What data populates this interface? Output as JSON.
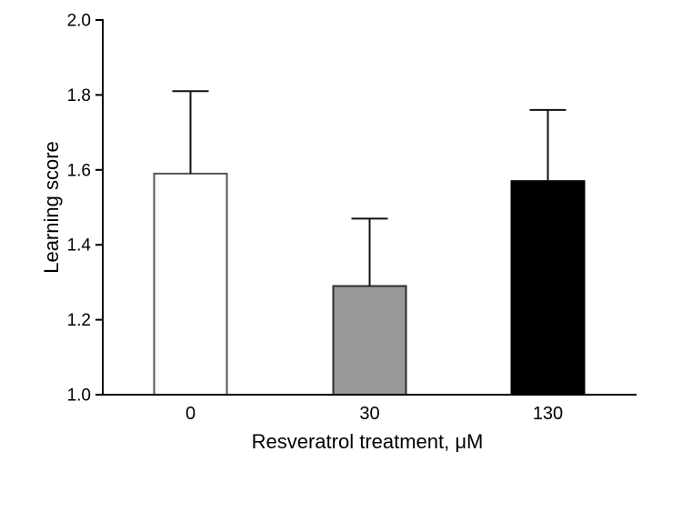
{
  "page": {
    "background_color": "#ffffff"
  },
  "chart_data": {
    "type": "bar",
    "title": "",
    "ylabel": "Learning score",
    "xlabel": "Resveratrol treatment, μM",
    "categories": [
      "0",
      "30",
      "130"
    ],
    "values": [
      1.59,
      1.29,
      1.57
    ],
    "error_plus": [
      0.22,
      0.18,
      0.19
    ],
    "series": [
      {
        "name": "Learning score",
        "values": [
          1.59,
          1.29,
          1.57
        ],
        "error_plus": [
          0.22,
          0.18,
          0.19
        ]
      }
    ],
    "bar_fill_colors": [
      "#ffffff",
      "#999999",
      "#000000"
    ],
    "bar_edge_colors": [
      "#555555",
      "#2e2e2e",
      "#000000"
    ],
    "error_bar_color": "#111111",
    "axis_color": "#000000",
    "text_color": "#000000",
    "ylim": [
      1.0,
      2.0
    ],
    "yticks": [
      "1.0",
      "1.2",
      "1.4",
      "1.6",
      "1.8",
      "2.0"
    ],
    "grid": false,
    "legend": null
  }
}
